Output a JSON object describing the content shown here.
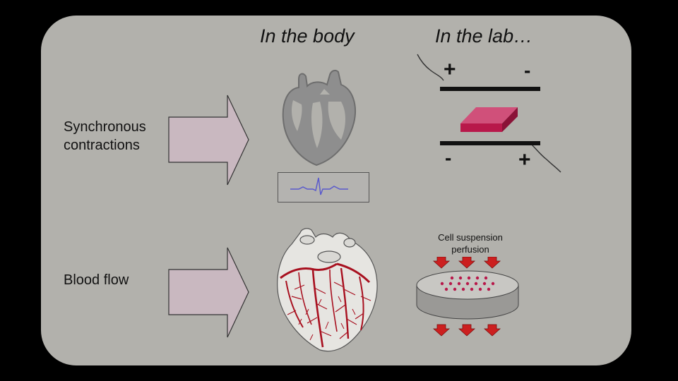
{
  "headers": {
    "body": "In the body",
    "lab": "In the lab…"
  },
  "rows": [
    {
      "label_lines": [
        "Synchronous",
        "contractions"
      ]
    },
    {
      "label_lines": [
        "Blood flow"
      ]
    }
  ],
  "electrodes": {
    "top_left": "+",
    "top_right": "-",
    "bottom_left": "-",
    "bottom_right": "+"
  },
  "perfusion": {
    "label_lines": [
      "Cell suspension",
      "perfusion"
    ]
  },
  "colors": {
    "slide_bg": "#b2b1ac",
    "arrow_fill": "#c9b8c0",
    "tissue": "#b8184a",
    "vessel": "#a8101f",
    "flow_arrow": "#cc1f1f",
    "ecg_trace": "#5a5acc"
  }
}
